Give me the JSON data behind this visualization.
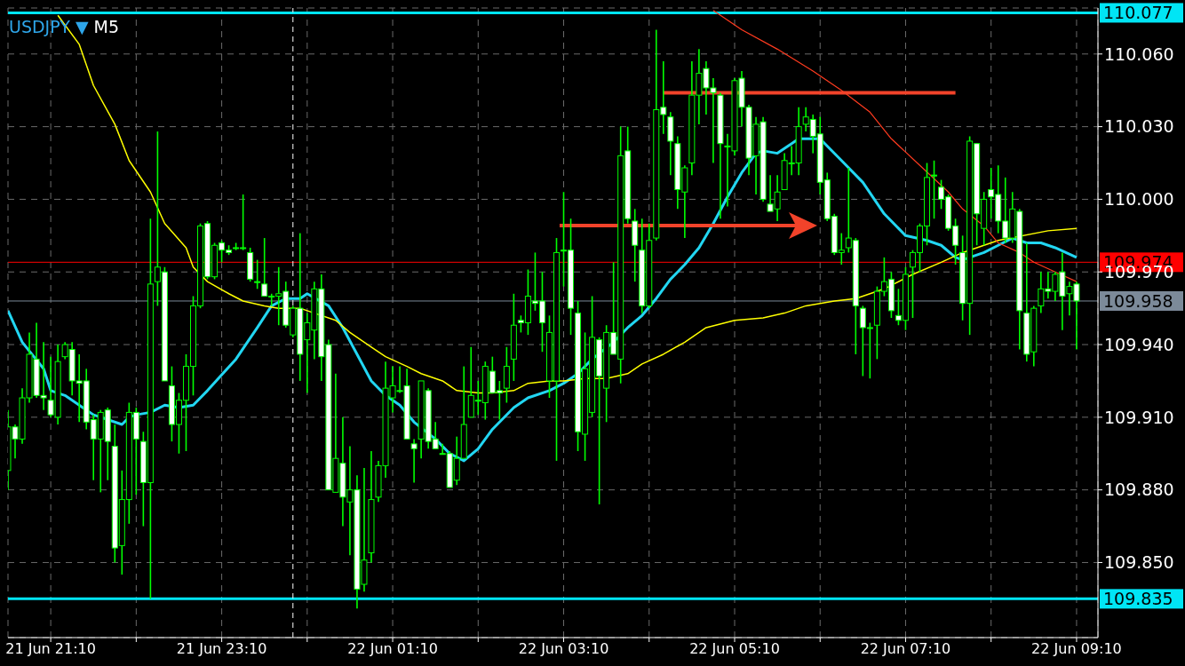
{
  "chart_data": {
    "type": "candlestick",
    "title": "USDJPY ▼",
    "subtitle": "M5",
    "color": "#00ff00",
    "grid": true,
    "ylim": [
      109.819,
      110.079
    ],
    "yticks": [
      {
        "value": 109.85,
        "label": "109.850"
      },
      {
        "value": 109.88,
        "label": "109.880"
      },
      {
        "value": 109.91,
        "label": "109.910"
      },
      {
        "value": 109.94,
        "label": "109.940"
      },
      {
        "value": 109.97,
        "label": "109.970"
      },
      {
        "value": 110,
        "label": "110.000"
      },
      {
        "value": 110.03,
        "label": "110.030"
      },
      {
        "value": 110.06,
        "label": "110.060"
      }
    ],
    "xlim": [
      "--06-21T20:40",
      "--06-22T09:25"
    ],
    "xticks": [
      {
        "value": "--06-21T21:10",
        "label": "21 Jun 21:10"
      },
      {
        "value": "--06-21T22:10",
        "label": null
      },
      {
        "value": "--06-21T23:10",
        "label": "21 Jun 23:10"
      },
      {
        "value": "--06-22T00:10",
        "label": null
      },
      {
        "value": "--06-22T01:10",
        "label": "22 Jun 01:10"
      },
      {
        "value": "--06-22T02:10",
        "label": null
      },
      {
        "value": "--06-22T03:10",
        "label": "22 Jun 03:10"
      },
      {
        "value": "--06-22T04:10",
        "label": null
      },
      {
        "value": "--06-22T05:10",
        "label": "22 Jun 05:10"
      },
      {
        "value": "--06-22T06:10",
        "label": null
      },
      {
        "value": "--06-22T07:10",
        "label": "22 Jun 07:10"
      },
      {
        "value": "--06-22T08:10",
        "label": null
      },
      {
        "value": "--06-22T09:10",
        "label": "22 Jun 09:10"
      }
    ],
    "x": [
      "--06-21T20:40",
      "--06-21T20:45",
      "--06-21T20:50",
      "--06-21T20:55",
      "--06-21T21:00",
      "--06-21T21:05",
      "--06-21T21:10",
      "--06-21T21:15",
      "--06-21T21:20",
      "--06-21T21:25",
      "--06-21T21:30",
      "--06-21T21:35",
      "--06-21T21:40",
      "--06-21T21:45",
      "--06-21T21:50",
      "--06-21T21:55",
      "--06-21T22:00",
      "--06-21T22:05",
      "--06-21T22:10",
      "--06-21T22:15",
      "--06-21T22:20",
      "--06-21T22:25",
      "--06-21T22:30",
      "--06-21T22:35",
      "--06-21T22:40",
      "--06-21T22:45",
      "--06-21T22:50",
      "--06-21T22:55",
      "--06-21T23:00",
      "--06-21T23:05",
      "--06-21T23:10",
      "--06-21T23:15",
      "--06-21T23:20",
      "--06-21T23:25",
      "--06-21T23:30",
      "--06-21T23:35",
      "--06-21T23:40",
      "--06-21T23:45",
      "--06-21T23:50",
      "--06-21T23:55",
      "--06-22T00:00",
      "--06-22T00:05",
      "--06-22T00:10",
      "--06-22T00:15",
      "--06-22T00:20",
      "--06-22T00:25",
      "--06-22T00:30",
      "--06-22T00:35",
      "--06-22T00:40",
      "--06-22T00:45",
      "--06-22T00:50",
      "--06-22T00:55",
      "--06-22T01:00",
      "--06-22T01:05",
      "--06-22T01:10",
      "--06-22T01:15",
      "--06-22T01:20",
      "--06-22T01:25",
      "--06-22T01:30",
      "--06-22T01:35",
      "--06-22T01:40",
      "--06-22T01:45",
      "--06-22T01:50",
      "--06-22T01:55",
      "--06-22T02:00",
      "--06-22T02:05",
      "--06-22T02:10",
      "--06-22T02:15",
      "--06-22T02:20",
      "--06-22T02:25",
      "--06-22T02:30",
      "--06-22T02:35",
      "--06-22T02:40",
      "--06-22T02:45",
      "--06-22T02:50",
      "--06-22T02:55",
      "--06-22T03:00",
      "--06-22T03:05",
      "--06-22T03:10",
      "--06-22T03:15",
      "--06-22T03:20",
      "--06-22T03:25",
      "--06-22T03:30",
      "--06-22T03:35",
      "--06-22T03:40",
      "--06-22T03:45",
      "--06-22T03:50",
      "--06-22T03:55",
      "--06-22T04:00",
      "--06-22T04:05",
      "--06-22T04:10",
      "--06-22T04:15",
      "--06-22T04:20",
      "--06-22T04:25",
      "--06-22T04:30",
      "--06-22T04:35",
      "--06-22T04:40",
      "--06-22T04:45",
      "--06-22T04:50",
      "--06-22T04:55",
      "--06-22T05:00",
      "--06-22T05:05",
      "--06-22T05:10",
      "--06-22T05:15",
      "--06-22T05:20",
      "--06-22T05:25",
      "--06-22T05:30",
      "--06-22T05:35",
      "--06-22T05:40",
      "--06-22T05:45",
      "--06-22T05:50",
      "--06-22T05:55",
      "--06-22T06:00",
      "--06-22T06:05",
      "--06-22T06:10",
      "--06-22T06:15",
      "--06-22T06:20",
      "--06-22T06:25",
      "--06-22T06:30",
      "--06-22T06:35",
      "--06-22T06:40",
      "--06-22T06:45",
      "--06-22T06:50",
      "--06-22T06:55",
      "--06-22T07:00",
      "--06-22T07:05",
      "--06-22T07:10",
      "--06-22T07:15",
      "--06-22T07:20",
      "--06-22T07:25",
      "--06-22T07:30",
      "--06-22T07:35",
      "--06-22T07:40",
      "--06-22T07:45",
      "--06-22T07:50",
      "--06-22T07:55",
      "--06-22T08:00",
      "--06-22T08:05",
      "--06-22T08:10",
      "--06-22T08:15",
      "--06-22T08:20",
      "--06-22T08:25",
      "--06-22T08:30",
      "--06-22T08:35",
      "--06-22T08:40",
      "--06-22T08:45",
      "--06-22T08:50",
      "--06-22T08:55",
      "--06-22T09:00",
      "--06-22T09:05",
      "--06-22T09:10"
    ],
    "ohlc": [
      [
        109.888,
        109.913,
        109.88,
        109.906
      ],
      [
        109.906,
        109.907,
        109.893,
        109.901
      ],
      [
        109.901,
        109.922,
        109.899,
        109.918
      ],
      [
        109.918,
        109.945,
        109.916,
        109.936
      ],
      [
        109.934,
        109.949,
        109.918,
        109.919
      ],
      [
        109.919,
        109.941,
        109.913,
        109.918
      ],
      [
        109.917,
        109.935,
        109.91,
        109.911
      ],
      [
        109.91,
        109.94,
        109.907,
        109.933
      ],
      [
        109.935,
        109.941,
        109.934,
        109.94
      ],
      [
        109.938,
        109.941,
        109.919,
        109.925
      ],
      [
        109.925,
        109.936,
        109.908,
        109.924
      ],
      [
        109.925,
        109.93,
        109.905,
        109.908
      ],
      [
        109.909,
        109.911,
        109.884,
        109.901
      ],
      [
        109.901,
        109.913,
        109.879,
        109.912
      ],
      [
        109.913,
        109.914,
        109.884,
        109.9
      ],
      [
        109.898,
        109.907,
        109.85,
        109.856
      ],
      [
        109.857,
        109.888,
        109.845,
        109.876
      ],
      [
        109.876,
        109.916,
        109.866,
        109.912
      ],
      [
        109.912,
        109.914,
        109.878,
        109.901
      ],
      [
        109.9,
        109.904,
        109.865,
        109.883
      ],
      [
        109.883,
        109.992,
        109.835,
        109.965
      ],
      [
        109.966,
        110.028,
        109.956,
        109.972
      ],
      [
        109.97,
        109.972,
        109.925,
        109.925
      ],
      [
        109.923,
        109.931,
        109.9,
        109.907
      ],
      [
        109.907,
        109.92,
        109.895,
        109.917
      ],
      [
        109.917,
        109.936,
        109.896,
        109.931
      ],
      [
        109.931,
        109.96,
        109.919,
        109.956
      ],
      [
        109.956,
        109.99,
        109.955,
        109.989
      ],
      [
        109.99,
        109.991,
        109.967,
        109.968
      ],
      [
        109.968,
        109.982,
        109.967,
        109.981
      ],
      [
        109.982,
        109.983,
        109.974,
        109.979
      ],
      [
        109.979,
        109.981,
        109.977,
        109.978
      ],
      [
        109.98,
        109.982,
        109.979,
        109.98
      ],
      [
        109.98,
        110.002,
        109.979,
        109.98
      ],
      [
        109.978,
        109.98,
        109.966,
        109.967
      ],
      [
        109.966,
        109.975,
        109.963,
        109.966
      ],
      [
        109.965,
        109.984,
        109.96,
        109.96
      ],
      [
        109.96,
        109.961,
        109.956,
        109.96
      ],
      [
        109.96,
        109.972,
        109.948,
        109.961
      ],
      [
        109.962,
        109.966,
        109.947,
        109.948
      ],
      [
        109.944,
        109.956,
        109.943,
        109.955
      ],
      [
        109.955,
        109.986,
        109.925,
        109.936
      ],
      [
        109.942,
        109.953,
        109.92,
        109.949
      ],
      [
        109.946,
        109.966,
        109.934,
        109.963
      ],
      [
        109.963,
        109.969,
        109.925,
        109.935
      ],
      [
        109.94,
        109.942,
        109.88,
        109.88
      ],
      [
        109.879,
        109.928,
        109.879,
        109.893
      ],
      [
        109.891,
        109.91,
        109.865,
        109.877
      ],
      [
        109.875,
        109.898,
        109.853,
        109.88
      ],
      [
        109.88,
        109.886,
        109.831,
        109.839
      ],
      [
        109.841,
        109.889,
        109.838,
        109.851
      ],
      [
        109.854,
        109.896,
        109.85,
        109.876
      ],
      [
        109.877,
        109.892,
        109.875,
        109.89
      ],
      [
        109.89,
        109.933,
        109.885,
        109.922
      ],
      [
        109.918,
        109.931,
        109.912,
        109.923
      ],
      [
        109.921,
        109.931,
        109.92,
        109.921
      ],
      [
        109.923,
        109.93,
        109.901,
        109.901
      ],
      [
        109.899,
        109.901,
        109.883,
        109.897
      ],
      [
        109.901,
        109.925,
        109.893,
        109.925
      ],
      [
        109.921,
        109.922,
        109.897,
        109.9
      ],
      [
        109.901,
        109.908,
        109.897,
        109.897
      ],
      [
        109.895,
        109.899,
        109.895,
        109.895
      ],
      [
        109.895,
        109.896,
        109.881,
        109.881
      ],
      [
        109.884,
        109.902,
        109.882,
        109.893
      ],
      [
        109.893,
        109.931,
        109.893,
        109.907
      ],
      [
        109.91,
        109.939,
        109.91,
        109.919
      ],
      [
        109.917,
        109.925,
        109.911,
        109.917
      ],
      [
        109.916,
        109.933,
        109.909,
        109.931
      ],
      [
        109.929,
        109.935,
        109.92,
        109.92
      ],
      [
        109.921,
        109.925,
        109.909,
        109.92
      ],
      [
        109.922,
        109.939,
        109.916,
        109.931
      ],
      [
        109.934,
        109.961,
        109.925,
        109.948
      ],
      [
        109.95,
        109.952,
        109.945,
        109.949
      ],
      [
        109.949,
        109.971,
        109.944,
        109.96
      ],
      [
        109.958,
        109.978,
        109.954,
        109.957
      ],
      [
        109.958,
        109.97,
        109.937,
        109.949
      ],
      [
        109.925,
        109.952,
        109.918,
        109.945
      ],
      [
        109.925,
        109.984,
        109.892,
        109.978
      ],
      [
        109.979,
        110.003,
        109.964,
        109.979
      ],
      [
        109.979,
        109.992,
        109.944,
        109.955
      ],
      [
        109.953,
        109.958,
        109.896,
        109.904
      ],
      [
        109.903,
        109.945,
        109.892,
        109.93
      ],
      [
        109.912,
        109.96,
        109.91,
        109.943
      ],
      [
        109.942,
        109.943,
        109.874,
        109.927
      ],
      [
        109.922,
        109.948,
        109.908,
        109.945
      ],
      [
        109.945,
        109.974,
        109.936,
        109.936
      ],
      [
        109.934,
        110.03,
        109.924,
        110.018
      ],
      [
        110.02,
        110.03,
        109.99,
        109.992
      ],
      [
        109.991,
        109.996,
        109.966,
        109.981
      ],
      [
        109.979,
        109.992,
        109.953,
        109.956
      ],
      [
        109.956,
        109.99,
        109.955,
        109.983
      ],
      [
        109.984,
        110.07,
        109.983,
        110.037
      ],
      [
        110.038,
        110.057,
        110.027,
        110.035
      ],
      [
        110.034,
        110.036,
        110.01,
        110.024
      ],
      [
        110.023,
        110.026,
        109.996,
        110.004
      ],
      [
        110.003,
        110.014,
        109.984,
        110.013
      ],
      [
        110.015,
        110.057,
        110.01,
        110.043
      ],
      [
        110.043,
        110.062,
        110.031,
        110.052
      ],
      [
        110.054,
        110.057,
        110.035,
        110.046
      ],
      [
        110.046,
        110.05,
        110.015,
        110.044
      ],
      [
        110.043,
        110.044,
        109.992,
        110.023
      ],
      [
        110.022,
        110.027,
        109.997,
        110.022
      ],
      [
        110.02,
        110.05,
        110.018,
        110.049
      ],
      [
        110.05,
        110.053,
        110.03,
        110.038
      ],
      [
        110.038,
        110.039,
        110.01,
        110.017
      ],
      [
        110.018,
        110.034,
        110.002,
        110.031
      ],
      [
        110.032,
        110.034,
        109.999,
        110.0
      ],
      [
        109.998,
        110.01,
        109.995,
        109.995
      ],
      [
        109.996,
        110.01,
        109.991,
        110.003
      ],
      [
        110.004,
        110.019,
        110.004,
        110.016
      ],
      [
        110.015,
        110.022,
        110.01,
        110.015
      ],
      [
        110.015,
        110.038,
        110.01,
        110.03
      ],
      [
        110.031,
        110.038,
        110.028,
        110.034
      ],
      [
        110.033,
        110.035,
        110.019,
        110.026
      ],
      [
        110.027,
        110.034,
        110.002,
        110.007
      ],
      [
        110.008,
        110.011,
        109.991,
        109.992
      ],
      [
        109.993,
        109.994,
        109.977,
        109.978
      ],
      [
        109.978,
        109.986,
        109.973,
        109.979
      ],
      [
        109.98,
        110.013,
        109.978,
        109.984
      ],
      [
        109.983,
        109.984,
        109.936,
        109.956
      ],
      [
        109.955,
        109.956,
        109.927,
        109.947
      ],
      [
        109.947,
        109.949,
        109.926,
        109.947
      ],
      [
        109.948,
        109.964,
        109.934,
        109.962
      ],
      [
        109.962,
        109.976,
        109.96,
        109.966
      ],
      [
        109.967,
        109.97,
        109.951,
        109.954
      ],
      [
        109.952,
        109.963,
        109.948,
        109.95
      ],
      [
        109.95,
        109.972,
        109.946,
        109.969
      ],
      [
        109.972,
        109.979,
        109.951,
        109.978
      ],
      [
        109.978,
        109.99,
        109.97,
        109.989
      ],
      [
        109.989,
        110.015,
        109.981,
        110.009
      ],
      [
        110.01,
        110.016,
        109.992,
        110.01
      ],
      [
        110.005,
        110.008,
        109.996,
        110.0
      ],
      [
        110.001,
        110.002,
        109.987,
        109.988
      ],
      [
        109.989,
        109.992,
        109.973,
        109.981
      ],
      [
        109.978,
        109.985,
        109.95,
        109.957
      ],
      [
        109.957,
        110.026,
        109.944,
        110.024
      ],
      [
        110.023,
        110.023,
        109.981,
        109.994
      ],
      [
        109.988,
        110.003,
        109.981,
        110.0
      ],
      [
        110.004,
        110.013,
        109.992,
        110.001
      ],
      [
        110.002,
        110.014,
        109.986,
        109.991
      ],
      [
        109.991,
        110.009,
        109.982,
        109.984
      ],
      [
        109.984,
        110.003,
        109.982,
        109.996
      ],
      [
        109.995,
        109.996,
        109.938,
        109.954
      ],
      [
        109.953,
        109.982,
        109.933,
        109.936
      ],
      [
        109.937,
        109.956,
        109.931,
        109.955
      ],
      [
        109.956,
        109.97,
        109.953,
        109.963
      ],
      [
        109.963,
        109.97,
        109.959,
        109.962
      ],
      [
        109.962,
        109.97,
        109.958,
        109.969
      ],
      [
        109.97,
        109.978,
        109.946,
        109.96
      ],
      [
        109.961,
        109.966,
        109.952,
        109.964
      ],
      [
        109.965,
        109.966,
        109.938,
        109.958
      ]
    ],
    "series": [
      {
        "type": "line",
        "color": "#22d6f2",
        "x": [
          "--06-21T20:40",
          "--06-21T20:50",
          "--06-21T21:05",
          "--06-21T21:10",
          "--06-21T21:20",
          "--06-21T21:35",
          "--06-21T21:40",
          "--06-21T22:00",
          "--06-21T22:05",
          "--06-21T22:10",
          "--06-21T22:20",
          "--06-21T22:30",
          "--06-21T22:40",
          "--06-21T22:50",
          "--06-21T23:00",
          "--06-21T23:20",
          "--06-21T23:35",
          "--06-21T23:45",
          "--06-21T23:55",
          "--06-22T00:05",
          "--06-22T00:10",
          "--06-22T00:25",
          "--06-22T00:35",
          "--06-22T00:45",
          "--06-22T00:55",
          "--06-22T01:05",
          "--06-22T01:15",
          "--06-22T01:25",
          "--06-22T01:40",
          "--06-22T01:50",
          "--06-22T02:00",
          "--06-22T02:10",
          "--06-22T02:20",
          "--06-22T02:35",
          "--06-22T02:45",
          "--06-22T03:00",
          "--06-22T03:10",
          "--06-22T03:20",
          "--06-22T03:30",
          "--06-22T03:45",
          "--06-22T03:55",
          "--06-22T04:05",
          "--06-22T04:15",
          "--06-22T04:25",
          "--06-22T04:35",
          "--06-22T04:45",
          "--06-22T04:55",
          "--06-22T05:05",
          "--06-22T05:15",
          "--06-22T05:25",
          "--06-22T05:30",
          "--06-22T05:40",
          "--06-22T05:50",
          "--06-22T05:55",
          "--06-22T06:10",
          "--06-22T06:15",
          "--06-22T06:25",
          "--06-22T06:40",
          "--06-22T06:55",
          "--06-22T07:05",
          "--06-22T07:10",
          "--06-22T07:25",
          "--06-22T07:35",
          "--06-22T07:45",
          "--06-22T07:50",
          "--06-22T08:05",
          "--06-22T08:15",
          "--06-22T08:25",
          "--06-22T08:35",
          "--06-22T08:45",
          "--06-22T08:55",
          "--06-22T09:10"
        ],
        "values": [
          109.954,
          109.941,
          109.93,
          109.921,
          109.919,
          109.913,
          109.911,
          109.907,
          109.91,
          109.911,
          109.912,
          109.915,
          109.914,
          109.915,
          109.921,
          109.934,
          109.947,
          109.956,
          109.959,
          109.959,
          109.961,
          109.956,
          109.947,
          109.936,
          109.925,
          109.919,
          109.915,
          109.908,
          109.901,
          109.895,
          109.892,
          109.897,
          109.905,
          109.914,
          109.918,
          109.921,
          109.924,
          109.928,
          109.934,
          109.941,
          109.947,
          109.952,
          109.959,
          109.967,
          109.973,
          109.98,
          109.99,
          110.001,
          110.011,
          110.019,
          110.02,
          110.019,
          110.023,
          110.025,
          110.025,
          110.022,
          110.016,
          110.007,
          109.994,
          109.988,
          109.985,
          109.983,
          109.981,
          109.976,
          109.975,
          109.978,
          109.981,
          109.984,
          109.982,
          109.982,
          109.98,
          109.976
        ]
      },
      {
        "type": "line",
        "color": "#ffff00",
        "x": [
          "--06-21T21:15",
          "--06-21T21:30",
          "--06-21T21:40",
          "--06-21T21:55",
          "--06-21T22:05",
          "--06-21T22:20",
          "--06-21T22:30",
          "--06-21T22:45",
          "--06-21T22:50",
          "--06-21T23:00",
          "--06-21T23:15",
          "--06-21T23:25",
          "--06-21T23:40",
          "--06-21T23:50",
          "--06-22T00:05",
          "--06-22T00:15",
          "--06-22T00:30",
          "--06-22T00:40",
          "--06-22T00:55",
          "--06-22T01:05",
          "--06-22T01:20",
          "--06-22T01:30",
          "--06-22T01:45",
          "--06-22T01:55",
          "--06-22T02:10",
          "--06-22T02:20",
          "--06-22T02:35",
          "--06-22T02:45",
          "--06-22T03:00",
          "--06-22T03:10",
          "--06-22T03:25",
          "--06-22T03:35",
          "--06-22T03:40",
          "--06-22T03:55",
          "--06-22T04:05",
          "--06-22T04:20",
          "--06-22T04:35",
          "--06-22T04:50",
          "--06-22T05:10",
          "--06-22T05:30",
          "--06-22T05:45",
          "--06-22T06:00",
          "--06-22T06:20",
          "--06-22T06:35",
          "--06-22T06:55",
          "--06-22T07:15",
          "--06-22T07:35",
          "--06-22T07:50",
          "--06-22T08:15",
          "--06-22T08:50",
          "--06-22T09:10"
        ],
        "values": [
          110.076,
          110.064,
          110.047,
          110.031,
          110.016,
          110.003,
          109.99,
          109.98,
          109.972,
          109.966,
          109.961,
          109.958,
          109.956,
          109.955,
          109.955,
          109.953,
          109.95,
          109.945,
          109.939,
          109.935,
          109.931,
          109.928,
          109.925,
          109.921,
          109.92,
          109.92,
          109.921,
          109.924,
          109.925,
          109.925,
          109.926,
          109.926,
          109.926,
          109.928,
          109.932,
          109.936,
          109.941,
          109.947,
          109.95,
          109.951,
          109.953,
          109.956,
          109.958,
          109.959,
          109.963,
          109.969,
          109.974,
          109.978,
          109.983,
          109.987,
          109.988
        ]
      },
      {
        "type": "line",
        "color": "#ff3b1f",
        "x": [
          "--06-22T04:55",
          "--06-22T05:15",
          "--06-22T05:40",
          "--06-22T06:05",
          "--06-22T06:25",
          "--06-22T06:45",
          "--06-22T07:00",
          "--06-22T07:20",
          "--06-22T07:40",
          "--06-22T07:50",
          "--06-22T08:05",
          "--06-22T08:15",
          "--06-22T08:30",
          "--06-22T08:40",
          "--06-22T08:55",
          "--06-22T09:10"
        ],
        "values": [
          110.078,
          110.07,
          110.062,
          110.053,
          110.045,
          110.036,
          110.025,
          110.014,
          110.003,
          109.996,
          109.989,
          109.982,
          109.978,
          109.974,
          109.97,
          109.966
        ]
      },
      {
        "type": "line",
        "color": "#f2432a",
        "x": [
          "--06-22T04:20",
          "--06-22T07:45"
        ],
        "values": [
          110.044,
          110.044
        ]
      }
    ],
    "ref_lines": [
      {
        "axis": "y",
        "value": 110.077,
        "label": "110.077",
        "color": "#00e5f5"
      },
      {
        "axis": "y",
        "value": 109.835,
        "label": "109.835",
        "color": "#00e5f5"
      },
      {
        "axis": "y",
        "value": 109.974,
        "label": "109.974",
        "color": "#ff0000"
      },
      {
        "axis": "y",
        "value": 109.958,
        "label": "109.958",
        "color": "#7c8a99"
      },
      {
        "axis": "x",
        "value": "--06-22T00:00",
        "color": "#ffffff",
        "line_style": "dashed"
      }
    ]
  }
}
